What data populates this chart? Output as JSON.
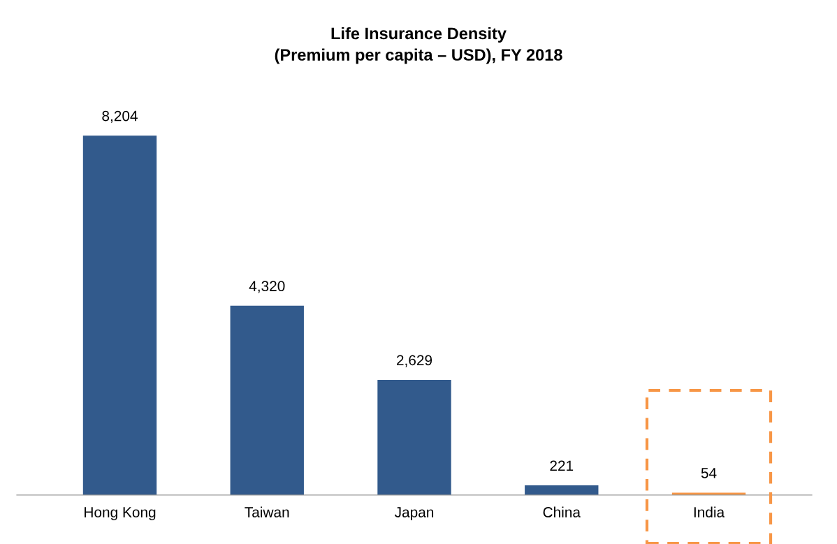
{
  "chart_data": {
    "type": "bar",
    "title": "Life Insurance Density\n(Premium per capita – USD), FY 2018",
    "categories": [
      "Hong Kong",
      "Taiwan",
      "Japan",
      "China",
      "India"
    ],
    "values": [
      8204,
      4320,
      2629,
      221,
      54
    ],
    "colors": [
      "#325a8c",
      "#325a8c",
      "#325a8c",
      "#325a8c",
      "#f79646"
    ],
    "data_labels": true,
    "value_labels": [
      "8,204",
      "4,320",
      "2,629",
      "221",
      "54"
    ],
    "tick_labels": "x"
  }
}
